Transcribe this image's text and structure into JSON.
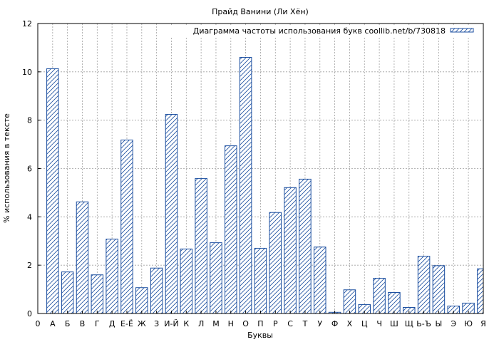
{
  "chart_data": {
    "type": "bar",
    "title": "Прайд Ванини (Ли Хён)",
    "xlabel": "Буквы",
    "ylabel": "% использования в тексте",
    "ylim": [
      0,
      12
    ],
    "yticks": [
      0,
      2,
      4,
      6,
      8,
      10,
      12
    ],
    "grid": true,
    "legend_position": "top-right",
    "x_start_label": "0",
    "categories": [
      "А",
      "Б",
      "В",
      "Г",
      "Д",
      "Е-Ё",
      "Ж",
      "З",
      "И-Й",
      "К",
      "Л",
      "М",
      "Н",
      "О",
      "П",
      "Р",
      "С",
      "Т",
      "У",
      "Ф",
      "Х",
      "Ц",
      "Ч",
      "Ш",
      "Щ",
      "Ь-Ъ",
      "Ы",
      "Э",
      "Ю",
      "Я"
    ],
    "series": [
      {
        "name": "Диаграмма частоты использования букв coollib.net/b/730818",
        "color": "#1c4fa0",
        "values": [
          10.13,
          1.72,
          4.62,
          1.6,
          3.08,
          7.18,
          1.07,
          1.88,
          8.24,
          2.67,
          5.59,
          2.93,
          6.94,
          10.6,
          2.7,
          4.18,
          5.21,
          5.56,
          2.75,
          0.05,
          0.98,
          0.37,
          1.46,
          0.87,
          0.25,
          2.37,
          1.98,
          0.31,
          0.43,
          1.85
        ]
      }
    ]
  }
}
